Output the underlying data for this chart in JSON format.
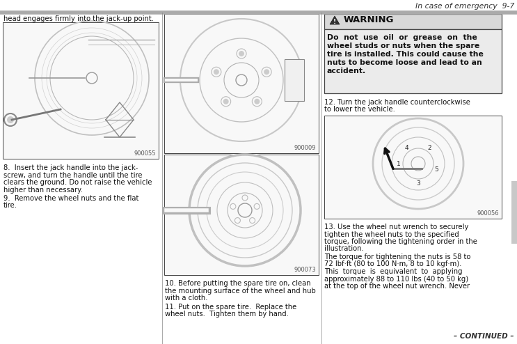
{
  "page_header_text": "In case of emergency  9-7",
  "bg_color": "#ffffff",
  "header_line_color": "#aaaaaa",
  "col1_top_text": "head engages firmly into the jack-up point.",
  "col1_img1_label": "900055",
  "col1_lines_8": [
    "8.  Insert the jack handle into the jack-",
    "screw, and turn the handle until the tire",
    "clears the ground. Do not raise the vehicle",
    "higher than necessary."
  ],
  "col1_lines_9": [
    "9.  Remove the wheel nuts and the flat",
    "tire."
  ],
  "col2_img1_label": "900009",
  "col2_img2_label": "900073",
  "col2_lines_10": [
    "10. Before putting the spare tire on, clean",
    "the mounting surface of the wheel and hub",
    "with a cloth."
  ],
  "col2_lines_11": [
    "11. Put on the spare tire.  Replace the",
    "wheel nuts.  Tighten them by hand."
  ],
  "warning_title": "WARNING",
  "warning_lines": [
    "Do  not  use  oil  or  grease  on  the",
    "wheel studs or nuts when the spare",
    "tire is installed. This could cause the",
    "nuts to become loose and lead to an",
    "accident."
  ],
  "col3_lines_12": [
    "12. Turn the jack handle counterclockwise",
    "to lower the vehicle."
  ],
  "col3_img_label": "900056",
  "col3_lines_13": [
    "13. Use the wheel nut wrench to securely",
    "tighten the wheel nuts to the specified",
    "torque, following the tightening order in the",
    "illustration."
  ],
  "col3_lines_torque": [
    "The torque for tightening the nuts is 58 to",
    "72 lbf·ft (80 to 100 N·m, 8 to 10 kgf·m).",
    "This  torque  is  equivalent  to  applying",
    "approximately 88 to 110 lbs (40 to 50 kg)",
    "at the top of the wheel nut wrench. Never"
  ],
  "footer_text": "– CONTINUED –",
  "warn_title_bg": "#d8d8d8",
  "warn_body_bg": "#ebebeb",
  "warn_border": "#444444",
  "gray_sidebar": "#c0c0c0",
  "separator_color": "#888888",
  "label_color": "#555555",
  "text_color": "#111111",
  "fs_body": 7.2,
  "fs_label": 6.0,
  "fs_warn_title": 9.5,
  "fs_warn_body": 7.8,
  "fs_header": 7.8,
  "fs_footer": 7.5
}
